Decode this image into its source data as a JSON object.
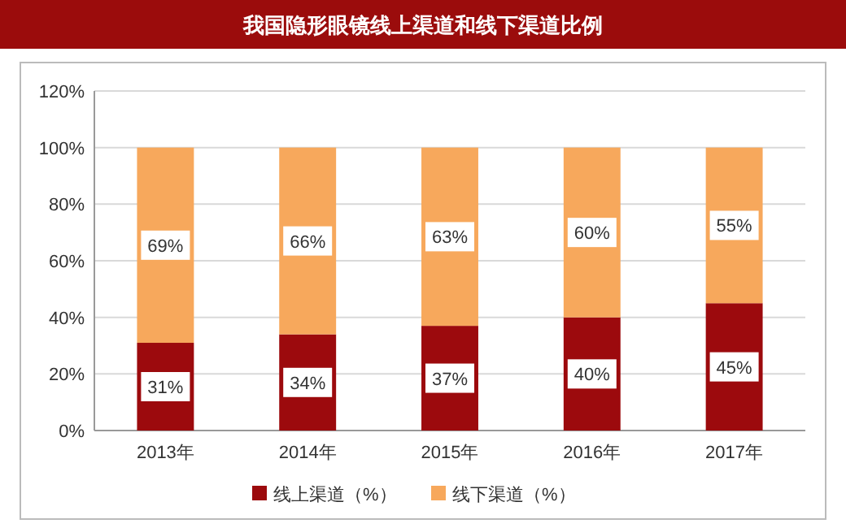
{
  "chart_data": {
    "type": "bar",
    "title": "我国隐形眼镜线上渠道和线下渠道比例",
    "categories": [
      "2013年",
      "2014年",
      "2015年",
      "2016年",
      "2017年"
    ],
    "series": [
      {
        "name": "线上渠道（%）",
        "color": "#9c0a0d",
        "values": [
          31,
          34,
          37,
          40,
          45
        ],
        "value_labels": [
          "31%",
          "34%",
          "37%",
          "40%",
          "45%"
        ]
      },
      {
        "name": "线下渠道（%）",
        "color": "#f7a85c",
        "values": [
          69,
          66,
          63,
          60,
          55
        ],
        "value_labels": [
          "69%",
          "66%",
          "63%",
          "60%",
          "55%"
        ]
      }
    ],
    "stacked": true,
    "ylim": [
      0,
      120
    ],
    "yticks": [
      {
        "value": 0,
        "label": "0%"
      },
      {
        "value": 20,
        "label": "20%"
      },
      {
        "value": 40,
        "label": "40%"
      },
      {
        "value": 60,
        "label": "60%"
      },
      {
        "value": 80,
        "label": "80%"
      },
      {
        "value": 100,
        "label": "100%"
      },
      {
        "value": 120,
        "label": "120%"
      }
    ],
    "grid": "y",
    "legend": "bottom"
  }
}
